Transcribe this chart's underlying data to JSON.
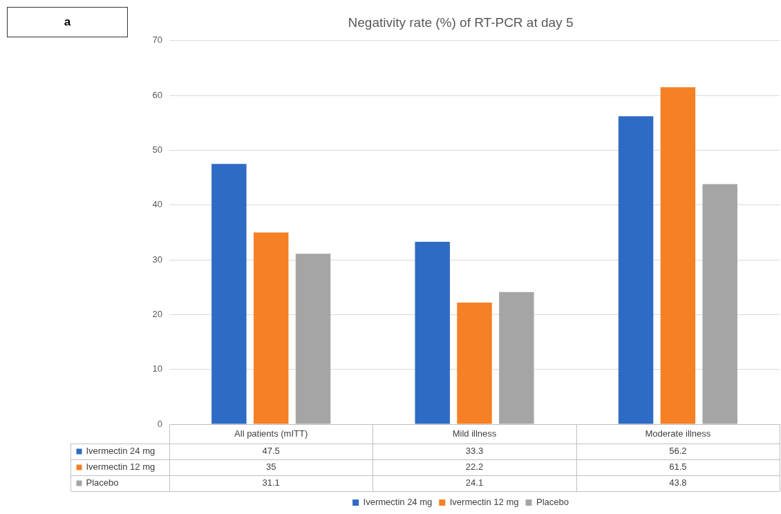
{
  "chart_data": {
    "type": "bar",
    "title": "Negativity rate (%) of RT-PCR at day 5",
    "annotations": [
      "a"
    ],
    "categories": [
      "All patients (mITT)",
      "Mild illness",
      "Moderate illness"
    ],
    "series": [
      {
        "name": "Ivermectin 24 mg",
        "color": "#2e6bc4",
        "values": [
          47.5,
          33.3,
          56.2
        ]
      },
      {
        "name": "Ivermectin 12 mg",
        "color": "#f58025",
        "values": [
          35,
          22.2,
          61.5
        ]
      },
      {
        "name": "Placebo",
        "color": "#a5a5a5",
        "values": [
          31.1,
          24.1,
          43.8
        ]
      }
    ],
    "ylim": [
      0,
      70
    ],
    "yticks": [
      0,
      10,
      20,
      30,
      40,
      50,
      60,
      70
    ],
    "grid": "y",
    "data_labels": true,
    "legend": "bottom"
  }
}
